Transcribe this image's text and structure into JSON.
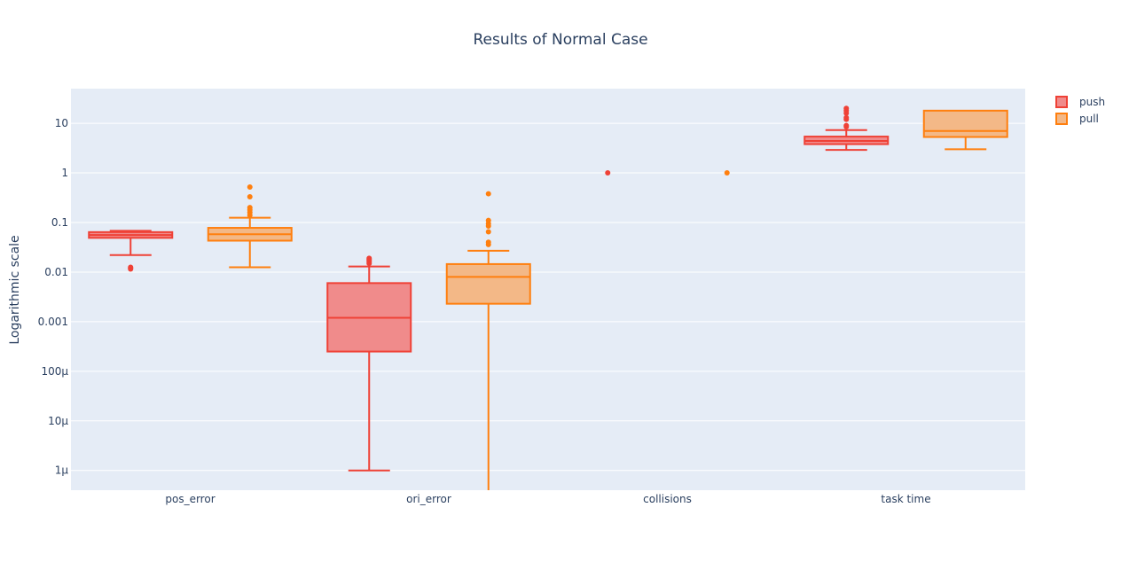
{
  "chart_data": {
    "type": "box",
    "title": "Results of Normal Case",
    "ylabel": "Logarithmic scale",
    "xlabel": "",
    "y_scale": "log",
    "ylim": [
      4e-07,
      50
    ],
    "grid": true,
    "legend_position": "top-right",
    "categories": [
      "pos_error",
      "ori_error",
      "collisions",
      "task time"
    ],
    "y_ticks": [
      {
        "value": 1e-06,
        "label": "1µ"
      },
      {
        "value": 1e-05,
        "label": "10µ"
      },
      {
        "value": 0.0001,
        "label": "100µ"
      },
      {
        "value": 0.001,
        "label": "0.001"
      },
      {
        "value": 0.01,
        "label": "0.01"
      },
      {
        "value": 0.1,
        "label": "0.1"
      },
      {
        "value": 1,
        "label": "1"
      },
      {
        "value": 10,
        "label": "10"
      }
    ],
    "series": [
      {
        "name": "push",
        "line_color": "#ef4136",
        "fill_color": "#f08b8b",
        "boxes": [
          {
            "category": "pos_error",
            "lower_whisker": 0.022,
            "q1": 0.049,
            "median": 0.056,
            "q3": 0.064,
            "upper_whisker": 0.068,
            "outliers": [
              0.0125,
              0.012,
              0.0115
            ]
          },
          {
            "category": "ori_error",
            "lower_whisker": 1e-06,
            "q1": 0.00025,
            "median": 0.0012,
            "q3": 0.006,
            "upper_whisker": 0.013,
            "outliers": [
              0.015,
              0.016,
              0.017,
              0.018,
              0.019
            ]
          },
          {
            "category": "collisions",
            "lower_whisker": 1,
            "q1": 1,
            "median": 1,
            "q3": 1,
            "upper_whisker": 1,
            "outliers": []
          },
          {
            "category": "task time",
            "lower_whisker": 2.9,
            "q1": 3.8,
            "median": 4.4,
            "q3": 5.4,
            "upper_whisker": 7.3,
            "outliers": [
              8.5,
              9.0,
              12,
              13,
              16,
              18,
              20
            ]
          }
        ]
      },
      {
        "name": "pull",
        "line_color": "#ff7f0e",
        "fill_color": "#f3b887",
        "boxes": [
          {
            "category": "pos_error",
            "lower_whisker": 0.0125,
            "q1": 0.043,
            "median": 0.058,
            "q3": 0.078,
            "upper_whisker": 0.125,
            "outliers": [
              0.14,
              0.16,
              0.18,
              0.2,
              0.33,
              0.52
            ]
          },
          {
            "category": "ori_error",
            "lower_whisker": 4e-07,
            "q1": 0.0023,
            "median": 0.008,
            "q3": 0.0145,
            "upper_whisker": 0.027,
            "outliers": [
              0.036,
              0.04,
              0.065,
              0.085,
              0.095,
              0.11,
              0.38
            ]
          },
          {
            "category": "collisions",
            "lower_whisker": 1,
            "q1": 1,
            "median": 1,
            "q3": 1,
            "upper_whisker": 1,
            "outliers": []
          },
          {
            "category": "task time",
            "lower_whisker": 3.0,
            "q1": 5.3,
            "median": 7.0,
            "q3": 18,
            "upper_whisker": 18,
            "outliers": []
          }
        ]
      }
    ]
  }
}
